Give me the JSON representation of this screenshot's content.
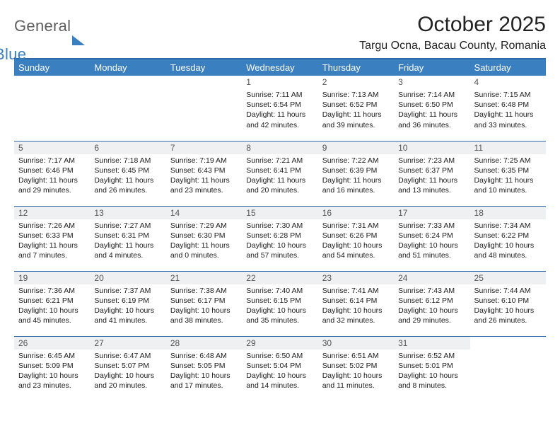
{
  "brand": {
    "general": "General",
    "blue": "Blue"
  },
  "title": "October 2025",
  "location": "Targu Ocna, Bacau County, Romania",
  "colors": {
    "accent": "#3a7fbf",
    "divider": "#2f6aab",
    "shade": "#eef0f2",
    "text": "#1b1b1b"
  },
  "weekdays": [
    "Sunday",
    "Monday",
    "Tuesday",
    "Wednesday",
    "Thursday",
    "Friday",
    "Saturday"
  ],
  "weeks": [
    [
      {
        "n": "",
        "sr": "",
        "ss": "",
        "dl": ""
      },
      {
        "n": "",
        "sr": "",
        "ss": "",
        "dl": ""
      },
      {
        "n": "",
        "sr": "",
        "ss": "",
        "dl": ""
      },
      {
        "n": "1",
        "sr": "Sunrise: 7:11 AM",
        "ss": "Sunset: 6:54 PM",
        "dl": "Daylight: 11 hours and 42 minutes."
      },
      {
        "n": "2",
        "sr": "Sunrise: 7:13 AM",
        "ss": "Sunset: 6:52 PM",
        "dl": "Daylight: 11 hours and 39 minutes."
      },
      {
        "n": "3",
        "sr": "Sunrise: 7:14 AM",
        "ss": "Sunset: 6:50 PM",
        "dl": "Daylight: 11 hours and 36 minutes."
      },
      {
        "n": "4",
        "sr": "Sunrise: 7:15 AM",
        "ss": "Sunset: 6:48 PM",
        "dl": "Daylight: 11 hours and 33 minutes."
      }
    ],
    [
      {
        "n": "5",
        "sr": "Sunrise: 7:17 AM",
        "ss": "Sunset: 6:46 PM",
        "dl": "Daylight: 11 hours and 29 minutes."
      },
      {
        "n": "6",
        "sr": "Sunrise: 7:18 AM",
        "ss": "Sunset: 6:45 PM",
        "dl": "Daylight: 11 hours and 26 minutes."
      },
      {
        "n": "7",
        "sr": "Sunrise: 7:19 AM",
        "ss": "Sunset: 6:43 PM",
        "dl": "Daylight: 11 hours and 23 minutes."
      },
      {
        "n": "8",
        "sr": "Sunrise: 7:21 AM",
        "ss": "Sunset: 6:41 PM",
        "dl": "Daylight: 11 hours and 20 minutes."
      },
      {
        "n": "9",
        "sr": "Sunrise: 7:22 AM",
        "ss": "Sunset: 6:39 PM",
        "dl": "Daylight: 11 hours and 16 minutes."
      },
      {
        "n": "10",
        "sr": "Sunrise: 7:23 AM",
        "ss": "Sunset: 6:37 PM",
        "dl": "Daylight: 11 hours and 13 minutes."
      },
      {
        "n": "11",
        "sr": "Sunrise: 7:25 AM",
        "ss": "Sunset: 6:35 PM",
        "dl": "Daylight: 11 hours and 10 minutes."
      }
    ],
    [
      {
        "n": "12",
        "sr": "Sunrise: 7:26 AM",
        "ss": "Sunset: 6:33 PM",
        "dl": "Daylight: 11 hours and 7 minutes."
      },
      {
        "n": "13",
        "sr": "Sunrise: 7:27 AM",
        "ss": "Sunset: 6:31 PM",
        "dl": "Daylight: 11 hours and 4 minutes."
      },
      {
        "n": "14",
        "sr": "Sunrise: 7:29 AM",
        "ss": "Sunset: 6:30 PM",
        "dl": "Daylight: 11 hours and 0 minutes."
      },
      {
        "n": "15",
        "sr": "Sunrise: 7:30 AM",
        "ss": "Sunset: 6:28 PM",
        "dl": "Daylight: 10 hours and 57 minutes."
      },
      {
        "n": "16",
        "sr": "Sunrise: 7:31 AM",
        "ss": "Sunset: 6:26 PM",
        "dl": "Daylight: 10 hours and 54 minutes."
      },
      {
        "n": "17",
        "sr": "Sunrise: 7:33 AM",
        "ss": "Sunset: 6:24 PM",
        "dl": "Daylight: 10 hours and 51 minutes."
      },
      {
        "n": "18",
        "sr": "Sunrise: 7:34 AM",
        "ss": "Sunset: 6:22 PM",
        "dl": "Daylight: 10 hours and 48 minutes."
      }
    ],
    [
      {
        "n": "19",
        "sr": "Sunrise: 7:36 AM",
        "ss": "Sunset: 6:21 PM",
        "dl": "Daylight: 10 hours and 45 minutes."
      },
      {
        "n": "20",
        "sr": "Sunrise: 7:37 AM",
        "ss": "Sunset: 6:19 PM",
        "dl": "Daylight: 10 hours and 41 minutes."
      },
      {
        "n": "21",
        "sr": "Sunrise: 7:38 AM",
        "ss": "Sunset: 6:17 PM",
        "dl": "Daylight: 10 hours and 38 minutes."
      },
      {
        "n": "22",
        "sr": "Sunrise: 7:40 AM",
        "ss": "Sunset: 6:15 PM",
        "dl": "Daylight: 10 hours and 35 minutes."
      },
      {
        "n": "23",
        "sr": "Sunrise: 7:41 AM",
        "ss": "Sunset: 6:14 PM",
        "dl": "Daylight: 10 hours and 32 minutes."
      },
      {
        "n": "24",
        "sr": "Sunrise: 7:43 AM",
        "ss": "Sunset: 6:12 PM",
        "dl": "Daylight: 10 hours and 29 minutes."
      },
      {
        "n": "25",
        "sr": "Sunrise: 7:44 AM",
        "ss": "Sunset: 6:10 PM",
        "dl": "Daylight: 10 hours and 26 minutes."
      }
    ],
    [
      {
        "n": "26",
        "sr": "Sunrise: 6:45 AM",
        "ss": "Sunset: 5:09 PM",
        "dl": "Daylight: 10 hours and 23 minutes."
      },
      {
        "n": "27",
        "sr": "Sunrise: 6:47 AM",
        "ss": "Sunset: 5:07 PM",
        "dl": "Daylight: 10 hours and 20 minutes."
      },
      {
        "n": "28",
        "sr": "Sunrise: 6:48 AM",
        "ss": "Sunset: 5:05 PM",
        "dl": "Daylight: 10 hours and 17 minutes."
      },
      {
        "n": "29",
        "sr": "Sunrise: 6:50 AM",
        "ss": "Sunset: 5:04 PM",
        "dl": "Daylight: 10 hours and 14 minutes."
      },
      {
        "n": "30",
        "sr": "Sunrise: 6:51 AM",
        "ss": "Sunset: 5:02 PM",
        "dl": "Daylight: 10 hours and 11 minutes."
      },
      {
        "n": "31",
        "sr": "Sunrise: 6:52 AM",
        "ss": "Sunset: 5:01 PM",
        "dl": "Daylight: 10 hours and 8 minutes."
      },
      {
        "n": "",
        "sr": "",
        "ss": "",
        "dl": ""
      }
    ]
  ]
}
